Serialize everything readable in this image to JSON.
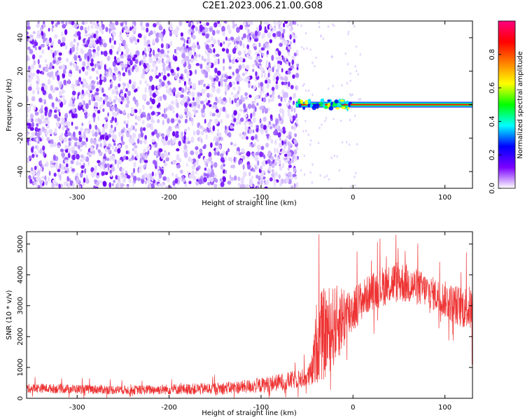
{
  "title": "C2E1.2023.006.21.00.G08",
  "chart_data": [
    {
      "type": "heatmap",
      "xlabel": "Height of straight line (km)",
      "ylabel": "Frequency (Hz)",
      "xlim": [
        -355,
        130
      ],
      "ylim": [
        -50,
        50
      ],
      "xticks": [
        -300,
        -200,
        -100,
        0,
        100
      ],
      "yticks": [
        -40,
        -20,
        0,
        20,
        40
      ],
      "noise_region_x": [
        -355,
        -60
      ],
      "signal_track": {
        "x_range": [
          -62,
          130
        ],
        "frequency": 0
      },
      "colorbar": {
        "label": "Normalized spectral amplitude",
        "range": [
          0,
          1
        ],
        "ticks": [
          0.0,
          0.2,
          0.4,
          0.6,
          0.8
        ],
        "tick_labels": [
          "0.0",
          "0.2",
          "0.4",
          "0.6",
          "0.8"
        ],
        "colors": [
          "#ffffff",
          "#7b00ff",
          "#0000ff",
          "#00ffff",
          "#00ff00",
          "#ffff00",
          "#ff8000",
          "#ff0000",
          "#ff0080"
        ]
      },
      "grid": false
    },
    {
      "type": "line",
      "xlabel": "Height of straight line (km)",
      "ylabel": "SNR (10 * v/v)",
      "xlim": [
        -355,
        130
      ],
      "ylim": [
        0,
        5400
      ],
      "xticks": [
        -300,
        -200,
        -100,
        0,
        100
      ],
      "yticks": [
        0,
        1000,
        2000,
        3000,
        4000,
        5000
      ],
      "color": "#ee3333",
      "x": [
        -355,
        -340,
        -320,
        -300,
        -280,
        -260,
        -240,
        -220,
        -200,
        -180,
        -160,
        -140,
        -120,
        -100,
        -90,
        -80,
        -70,
        -60,
        -50,
        -45,
        -42,
        -40,
        -35,
        -30,
        -25,
        -20,
        -15,
        -10,
        -5,
        0,
        5,
        10,
        20,
        30,
        40,
        50,
        60,
        70,
        80,
        90,
        100,
        110,
        120,
        130
      ],
      "y": [
        320,
        330,
        310,
        300,
        290,
        280,
        270,
        280,
        290,
        300,
        310,
        330,
        370,
        420,
        470,
        520,
        570,
        620,
        680,
        800,
        1300,
        1800,
        2000,
        2100,
        2250,
        2350,
        2500,
        2650,
        2750,
        2900,
        3050,
        3200,
        3450,
        3600,
        3750,
        3800,
        3700,
        3600,
        3500,
        3350,
        3200,
        3050,
        2950,
        2900
      ],
      "noise_envelope": [
        150,
        150,
        150,
        150,
        150,
        150,
        150,
        160,
        170,
        180,
        190,
        200,
        220,
        250,
        270,
        280,
        290,
        300,
        320,
        500,
        900,
        1300,
        1500,
        1500,
        1400,
        1300,
        1200,
        1100,
        900,
        800,
        700,
        650,
        600,
        650,
        700,
        700,
        650,
        600,
        550,
        550,
        600,
        650,
        700,
        750
      ],
      "grid": false
    }
  ]
}
